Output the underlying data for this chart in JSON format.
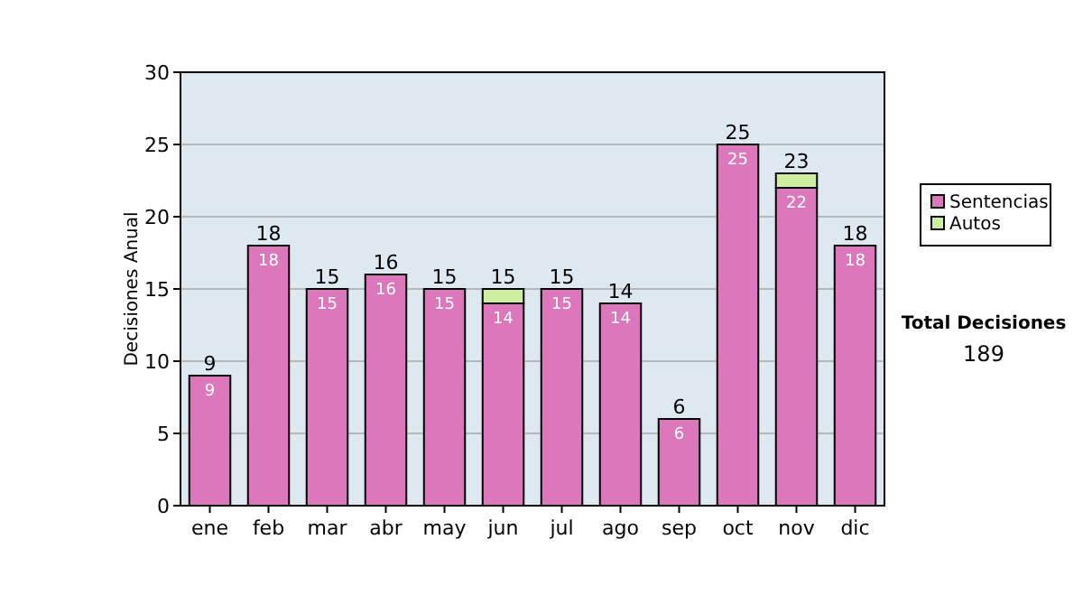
{
  "chart_data": {
    "type": "bar",
    "stacked": true,
    "ylabel": "Decisiones Anual",
    "categories": [
      "ene",
      "feb",
      "mar",
      "abr",
      "may",
      "jun",
      "jul",
      "ago",
      "sep",
      "oct",
      "nov",
      "dic"
    ],
    "series": [
      {
        "name": "Sentencias",
        "color": "#dd77bb",
        "values": [
          9,
          18,
          15,
          16,
          15,
          14,
          15,
          14,
          6,
          25,
          22,
          18
        ],
        "value_labels": [
          "9",
          "18",
          "15",
          "16",
          "15",
          "14",
          "15",
          "14",
          "6",
          "25",
          "22",
          "18"
        ]
      },
      {
        "name": "Autos",
        "color": "#cceea0",
        "values": [
          0,
          0,
          0,
          0,
          0,
          1,
          0,
          0,
          0,
          0,
          1,
          0
        ]
      }
    ],
    "totals": [
      "9",
      "18",
      "15",
      "16",
      "15",
      "15",
      "15",
      "14",
      "6",
      "25",
      "23",
      "18"
    ],
    "ylim": [
      0,
      30
    ],
    "yticks": [
      0,
      5,
      10,
      15,
      20,
      25,
      30
    ],
    "grid": "y",
    "legend": "right",
    "annotations": [
      "Total Decisiones",
      "189"
    ]
  }
}
